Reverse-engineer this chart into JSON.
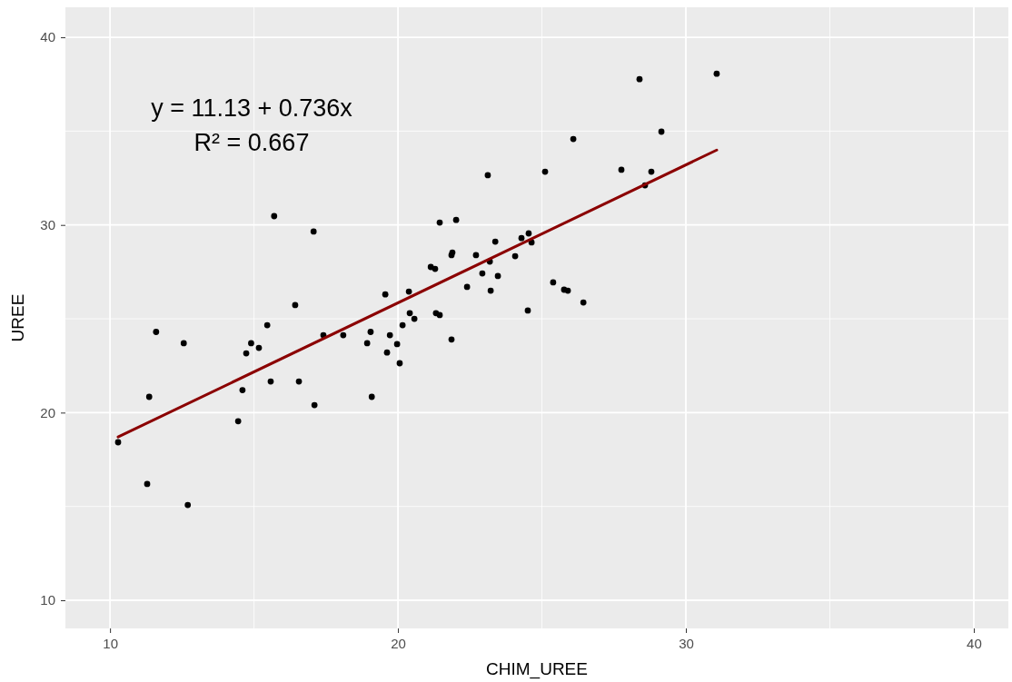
{
  "chart_data": {
    "type": "scatter",
    "xlabel": "CHIM_UREE",
    "ylabel": "UREE",
    "xlim": [
      8.45,
      41.2
    ],
    "ylim": [
      8.5,
      41.6
    ],
    "xticks": [
      10,
      20,
      30,
      40
    ],
    "yticks": [
      10,
      20,
      30,
      40
    ],
    "grid": true,
    "annotations": [
      "y = 11.13 + 0.736x",
      "R² = 0.667"
    ],
    "series": [
      {
        "marker": "circle",
        "color": "#000000",
        "x": [
          10.28,
          11.29,
          11.36,
          11.6,
          12.56,
          12.7,
          14.45,
          14.6,
          14.73,
          14.9,
          15.17,
          15.46,
          15.58,
          15.7,
          16.43,
          16.56,
          17.07,
          17.1,
          17.41,
          18.1,
          18.93,
          19.05,
          19.09,
          19.56,
          19.62,
          19.72,
          19.97,
          20.06,
          20.16,
          20.38,
          20.41,
          20.57,
          21.14,
          21.29,
          21.32,
          21.45,
          21.45,
          21.86,
          21.86,
          21.89,
          22.02,
          22.4,
          22.71,
          22.93,
          23.12,
          23.19,
          23.22,
          23.38,
          23.47,
          24.07,
          24.29,
          24.51,
          24.54,
          24.64,
          25.11,
          25.39,
          25.77,
          25.9,
          26.09,
          26.44,
          27.76,
          28.39,
          28.58,
          28.8,
          29.15,
          31.07
        ],
        "values": [
          18.42,
          16.2,
          20.84,
          24.3,
          23.7,
          15.08,
          19.54,
          21.2,
          23.16,
          23.7,
          23.45,
          24.66,
          21.66,
          30.47,
          25.73,
          21.66,
          29.65,
          20.4,
          24.13,
          24.13,
          23.7,
          24.3,
          20.84,
          26.3,
          23.2,
          24.13,
          23.65,
          22.63,
          24.66,
          26.45,
          25.3,
          25.0,
          27.76,
          27.66,
          25.3,
          30.13,
          25.2,
          23.9,
          28.39,
          28.53,
          30.27,
          26.7,
          28.39,
          27.42,
          32.65,
          28.05,
          26.5,
          29.11,
          27.28,
          28.34,
          29.3,
          25.44,
          29.55,
          29.07,
          32.84,
          26.94,
          26.55,
          26.5,
          34.58,
          25.87,
          32.94,
          37.77,
          32.11,
          32.84,
          34.97,
          38.06
        ]
      },
      {
        "type": "line",
        "color": "#8b0000",
        "x": [
          10.28,
          31.07
        ],
        "values": [
          18.7,
          33.99
        ]
      }
    ]
  }
}
